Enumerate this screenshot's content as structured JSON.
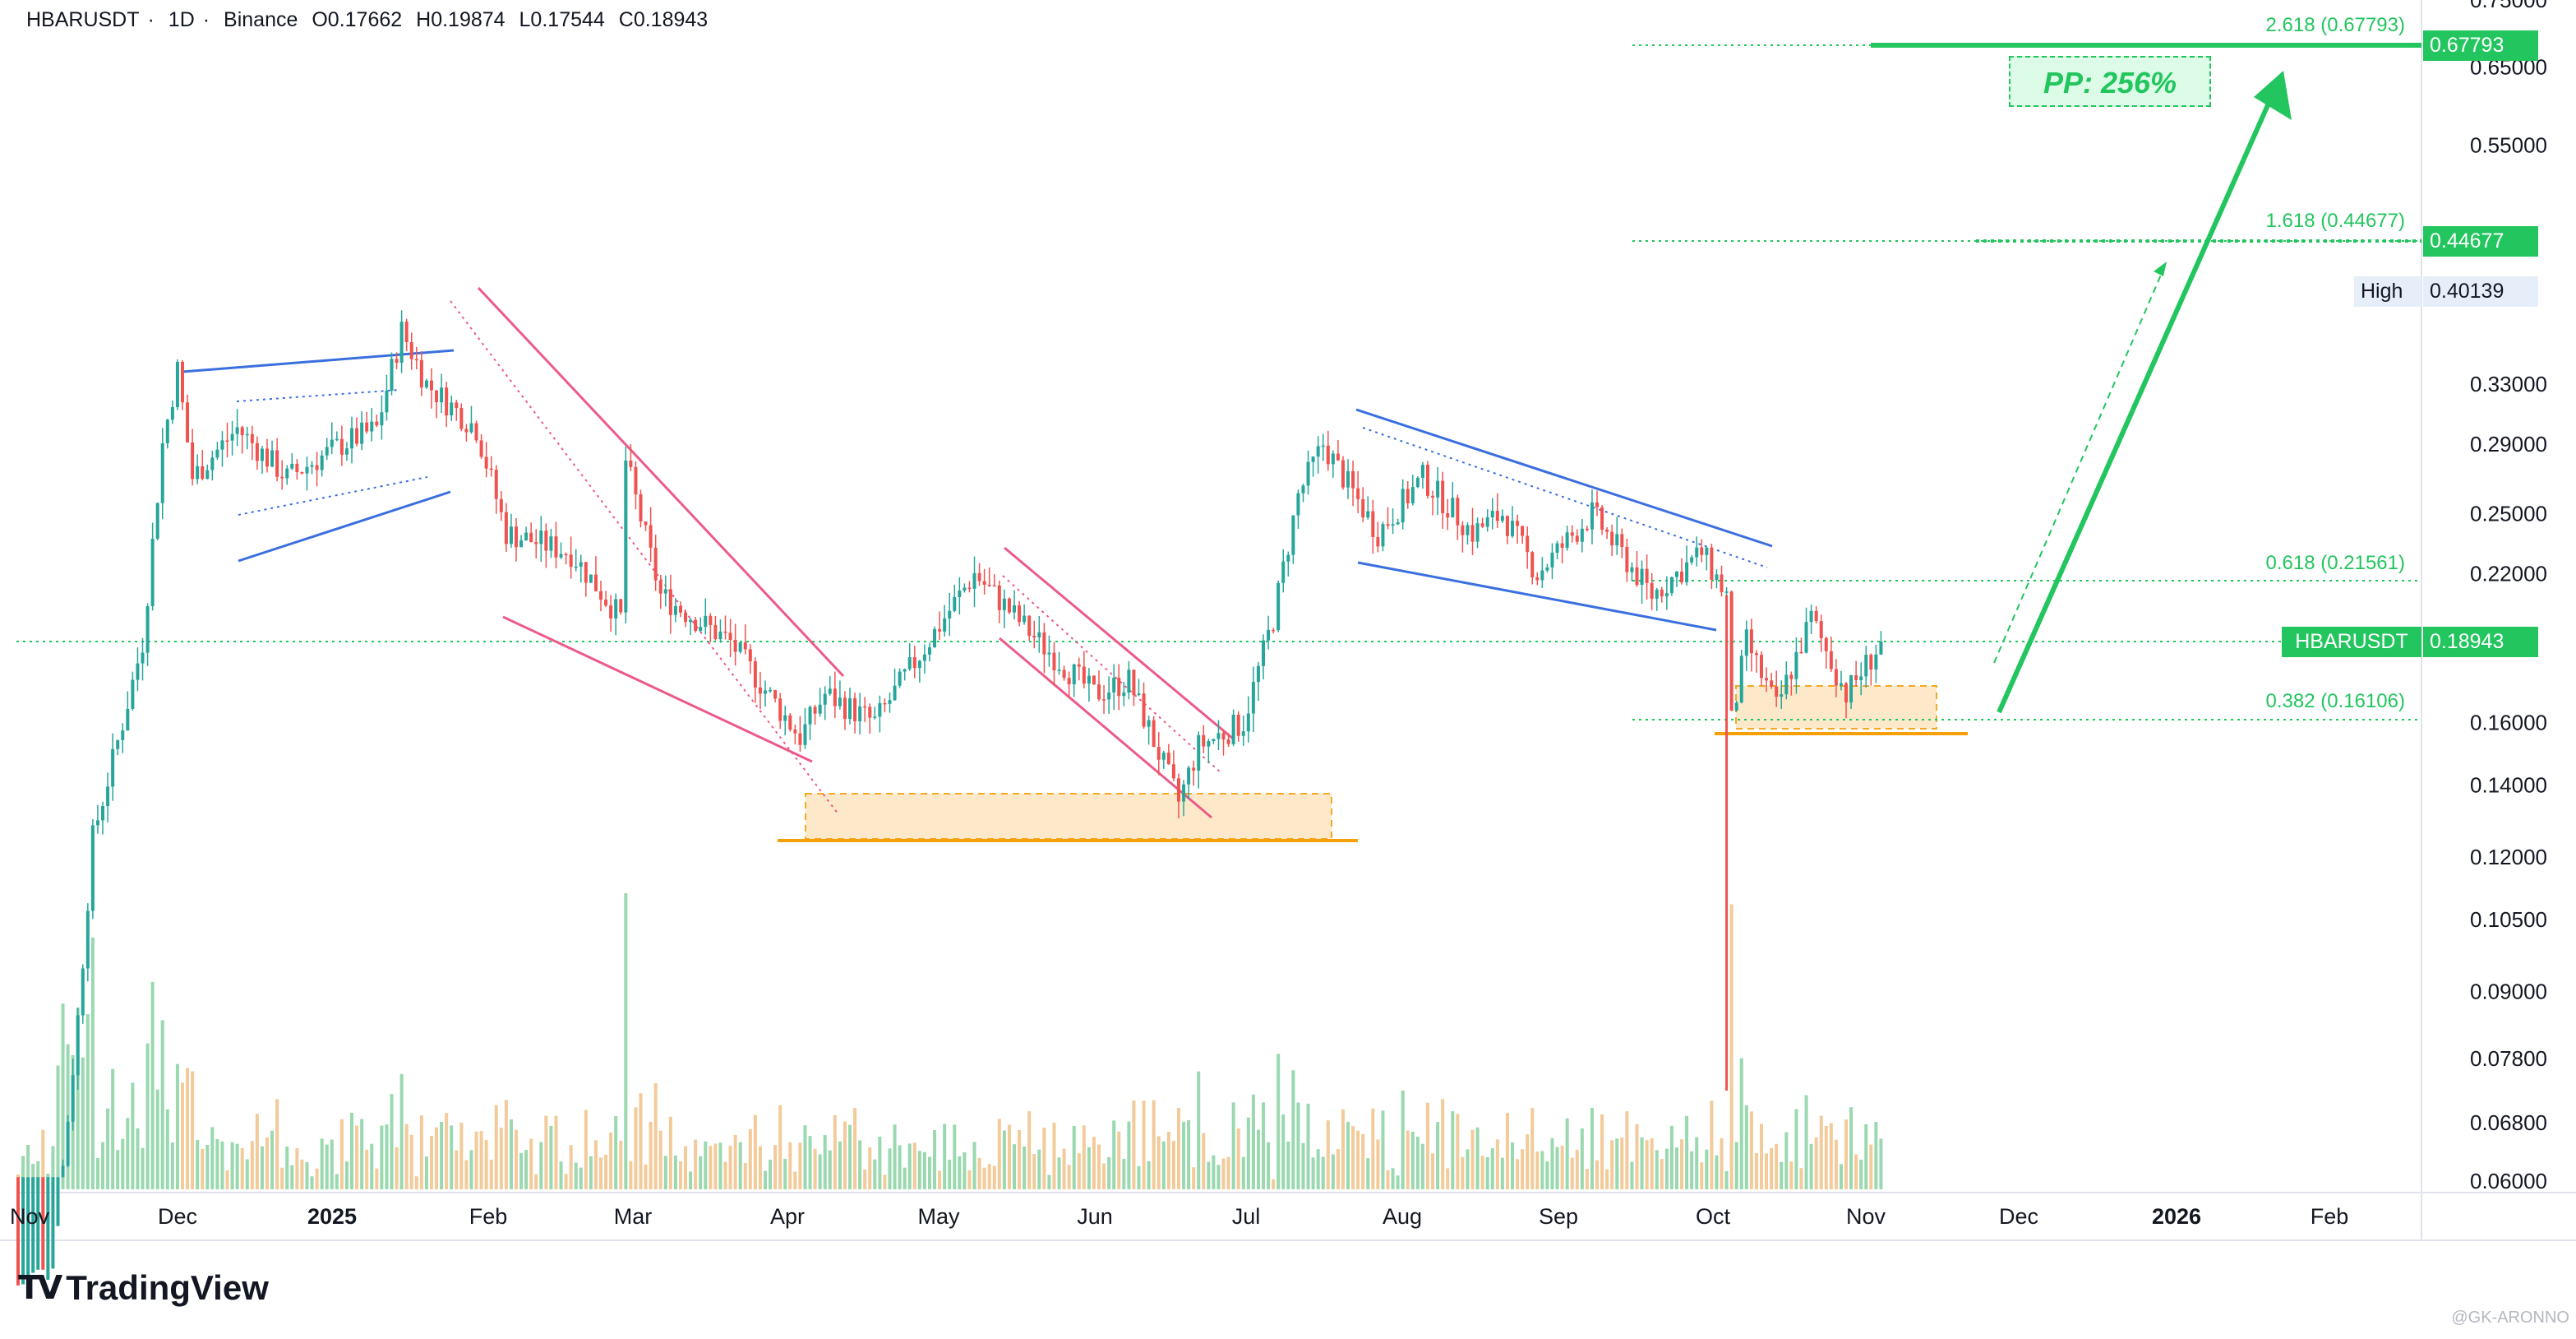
{
  "header": {
    "symbol": "HBARUSDT",
    "interval": "1D",
    "exchange": "Binance",
    "open": "O0.17662",
    "high": "H0.19874",
    "low": "L0.17544",
    "close": "C0.18943"
  },
  "brand": {
    "logo_text": "TradingView",
    "watermark": "@GK-ARONNO"
  },
  "annotations": {
    "pp_label": "PP: 256%",
    "fib_2618": "2.618 (0.67793)",
    "fib_1618": "1.618 (0.44677)",
    "fib_0618": "0.618 (0.21561)",
    "fib_0382": "0.382 (0.16106)"
  },
  "price_tags": {
    "fib_2618_value": "0.67793",
    "fib_1618_value": "0.44677",
    "high_label": "High",
    "high_value": "0.40139",
    "symbol_label": "HBARUSDT",
    "last_value": "0.18943"
  },
  "colors": {
    "up": "#26a69a",
    "down": "#ef5350",
    "projection": "#22c55e",
    "channel_blue": "#3b6fe0",
    "wedge_pink": "#ec5a88",
    "support_orange": "#f59f0b",
    "support_fill": "#fde7c4"
  },
  "chart_data": {
    "type": "candlestick",
    "symbol": "HBARUSDT",
    "interval": "1D",
    "y_axis_scale": "log",
    "ylim": [
      0.058,
      0.79
    ],
    "x_ticks": [
      "Nov",
      "Dec",
      "2025",
      "Feb",
      "Mar",
      "Apr",
      "May",
      "Jun",
      "Jul",
      "Aug",
      "Sep",
      "Oct",
      "Nov",
      "Dec",
      "2026",
      "Feb"
    ],
    "y_ticks": [
      "0.75000",
      "0.65000",
      "0.55000",
      "0.33000",
      "0.29000",
      "0.25000",
      "0.22000",
      "0.16000",
      "0.14000",
      "0.12000",
      "0.10500",
      "0.09000",
      "0.07800",
      "0.06800",
      "0.06000"
    ],
    "close_path": [
      {
        "date": "2024-11-01",
        "close": 0.048
      },
      {
        "date": "2024-11-08",
        "close": 0.05
      },
      {
        "date": "2024-11-13",
        "close": 0.085
      },
      {
        "date": "2024-11-16",
        "close": 0.125
      },
      {
        "date": "2024-11-22",
        "close": 0.16
      },
      {
        "date": "2024-11-26",
        "close": 0.19
      },
      {
        "date": "2024-11-30",
        "close": 0.29
      },
      {
        "date": "2024-12-03",
        "close": 0.34
      },
      {
        "date": "2024-12-06",
        "close": 0.27
      },
      {
        "date": "2024-12-15",
        "close": 0.3
      },
      {
        "date": "2024-12-25",
        "close": 0.27
      },
      {
        "date": "2025-01-05",
        "close": 0.29
      },
      {
        "date": "2025-01-12",
        "close": 0.3
      },
      {
        "date": "2025-01-17",
        "close": 0.37
      },
      {
        "date": "2025-01-22",
        "close": 0.33
      },
      {
        "date": "2025-02-01",
        "close": 0.3
      },
      {
        "date": "2025-02-07",
        "close": 0.24
      },
      {
        "date": "2025-02-20",
        "close": 0.23
      },
      {
        "date": "2025-03-02",
        "close": 0.2
      },
      {
        "date": "2025-03-03",
        "close": 0.28
      },
      {
        "date": "2025-03-10",
        "close": 0.21
      },
      {
        "date": "2025-03-24",
        "close": 0.19
      },
      {
        "date": "2025-04-07",
        "close": 0.155
      },
      {
        "date": "2025-04-12",
        "close": 0.17
      },
      {
        "date": "2025-04-22",
        "close": 0.16
      },
      {
        "date": "2025-05-01",
        "close": 0.185
      },
      {
        "date": "2025-05-12",
        "close": 0.22
      },
      {
        "date": "2025-05-25",
        "close": 0.19
      },
      {
        "date": "2025-06-05",
        "close": 0.17
      },
      {
        "date": "2025-06-12",
        "close": 0.175
      },
      {
        "date": "2025-06-22",
        "close": 0.135
      },
      {
        "date": "2025-06-26",
        "close": 0.152
      },
      {
        "date": "2025-07-05",
        "close": 0.16
      },
      {
        "date": "2025-07-11",
        "close": 0.2
      },
      {
        "date": "2025-07-16",
        "close": 0.26
      },
      {
        "date": "2025-07-21",
        "close": 0.29
      },
      {
        "date": "2025-08-01",
        "close": 0.24
      },
      {
        "date": "2025-08-10",
        "close": 0.27
      },
      {
        "date": "2025-08-20",
        "close": 0.24
      },
      {
        "date": "2025-08-26",
        "close": 0.25
      },
      {
        "date": "2025-09-02",
        "close": 0.22
      },
      {
        "date": "2025-09-13",
        "close": 0.25
      },
      {
        "date": "2025-09-25",
        "close": 0.21
      },
      {
        "date": "2025-10-05",
        "close": 0.23
      },
      {
        "date": "2025-10-10",
        "close": 0.21
      },
      {
        "date": "2025-10-11",
        "close": 0.16
      },
      {
        "date": "2025-10-14",
        "close": 0.19
      },
      {
        "date": "2025-10-20",
        "close": 0.165
      },
      {
        "date": "2025-10-27",
        "close": 0.2
      },
      {
        "date": "2025-11-03",
        "close": 0.17
      },
      {
        "date": "2025-11-10",
        "close": 0.18943
      }
    ],
    "key_levels": [
      {
        "name": "2.618",
        "value": 0.67793
      },
      {
        "name": "1.618",
        "value": 0.44677
      },
      {
        "name": "0.618",
        "value": 0.21561
      },
      {
        "name": "0.382",
        "value": 0.16106
      },
      {
        "name": "High",
        "value": 0.40139
      },
      {
        "name": "HBARUSDT",
        "value": 0.18943
      }
    ],
    "last_close": 0.18943,
    "projection_pct": 256,
    "grid": false
  }
}
